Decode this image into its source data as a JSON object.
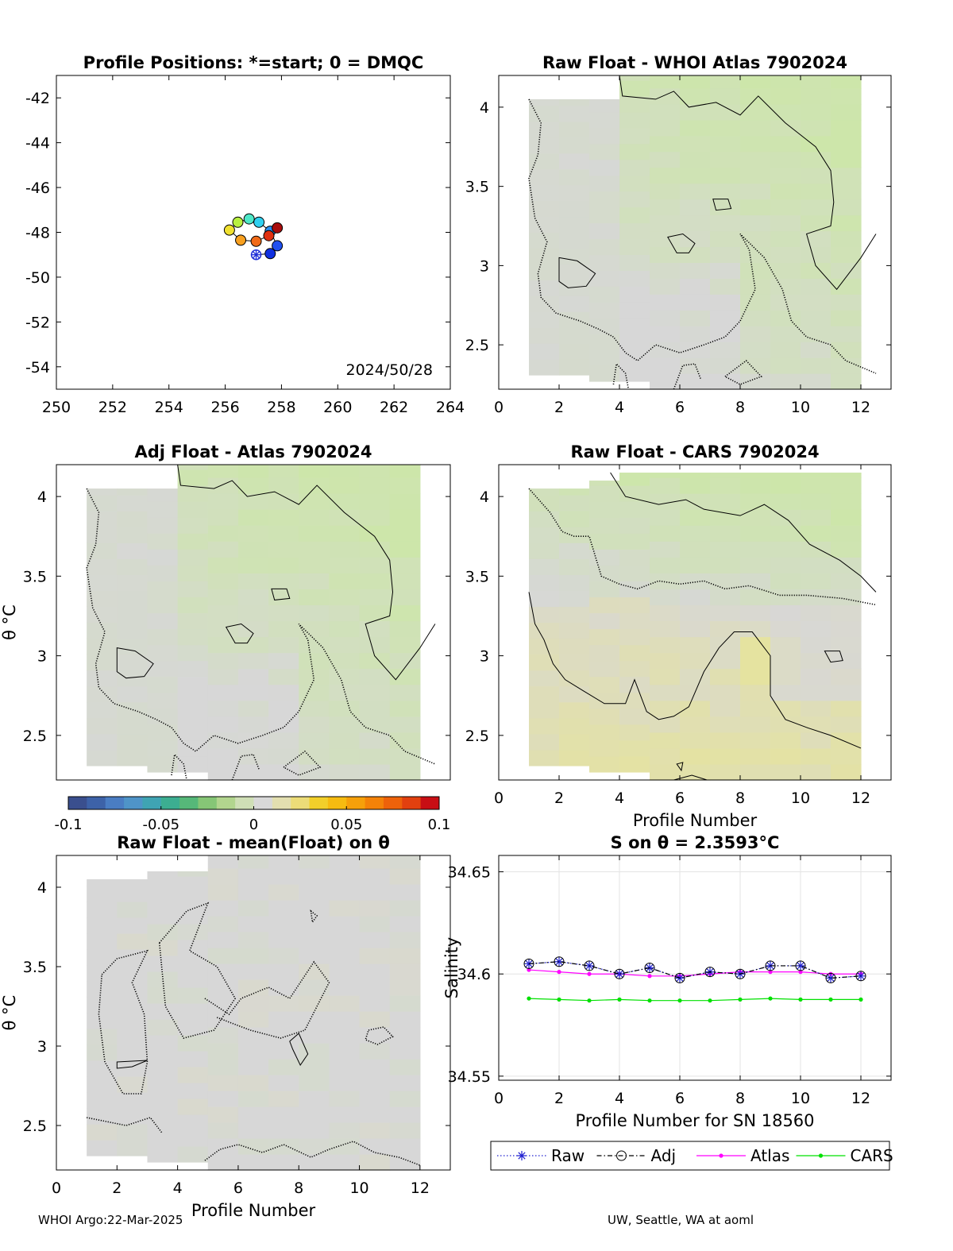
{
  "colors": {
    "neutral": "#d7d7d7",
    "green": "#cde6aa",
    "yellow": "#e6e49a",
    "raw": "#2020d0",
    "adj": "#000000",
    "atlas": "#ff00ff",
    "cars": "#00e000",
    "colorbar": [
      "#3a4f8e",
      "#3d62a8",
      "#4a7dc3",
      "#4f94c8",
      "#3fa4b3",
      "#3cae91",
      "#56b879",
      "#86c676",
      "#b2d58e",
      "#cfdfb6",
      "#d9d9d9",
      "#e3dfb0",
      "#ecdc78",
      "#f2cf2a",
      "#f6bb10",
      "#f6a00a",
      "#f48208",
      "#ee620a",
      "#e2400f",
      "#c80e14"
    ]
  },
  "chart_data": [
    {
      "id": "positions",
      "type": "scatter",
      "title": "Profile Positions: *=start; 0 = DMQC",
      "xlim": [
        250,
        264
      ],
      "ylim": [
        -55,
        -41
      ],
      "xticks": [
        250,
        252,
        254,
        256,
        258,
        260,
        262,
        264
      ],
      "yticks": [
        -42,
        -44,
        -46,
        -48,
        -50,
        -52,
        -54
      ],
      "xticklabels": [
        "250",
        "252",
        "254",
        "256",
        "258",
        "260",
        "262",
        "264"
      ],
      "yticklabels": [
        "-42",
        "-44",
        "-46",
        "-48",
        "-50",
        "-52",
        "-54"
      ],
      "annotation": "2024/50/28",
      "points": [
        {
          "profile": 1,
          "lon": 257.1,
          "lat": -49.0,
          "color": "#1f2fd8",
          "start": true
        },
        {
          "profile": 2,
          "lon": 257.6,
          "lat": -48.95,
          "color": "#1030e0",
          "start": false
        },
        {
          "profile": 3,
          "lon": 257.85,
          "lat": -48.6,
          "color": "#2050f0",
          "start": false
        },
        {
          "profile": 4,
          "lon": 257.6,
          "lat": -47.95,
          "color": "#2b8cf0",
          "start": false
        },
        {
          "profile": 5,
          "lon": 257.2,
          "lat": -47.55,
          "color": "#30d0f0",
          "start": false
        },
        {
          "profile": 6,
          "lon": 256.85,
          "lat": -47.4,
          "color": "#4ee8c8",
          "start": false
        },
        {
          "profile": 7,
          "lon": 256.45,
          "lat": -47.55,
          "color": "#b8f040",
          "start": false
        },
        {
          "profile": 8,
          "lon": 256.15,
          "lat": -47.9,
          "color": "#f0e030",
          "start": false
        },
        {
          "profile": 9,
          "lon": 256.55,
          "lat": -48.35,
          "color": "#f8a020",
          "start": false
        },
        {
          "profile": 10,
          "lon": 257.1,
          "lat": -48.4,
          "color": "#f06a18",
          "start": false
        },
        {
          "profile": 11,
          "lon": 257.55,
          "lat": -48.15,
          "color": "#e03010",
          "start": false
        },
        {
          "profile": 12,
          "lon": 257.85,
          "lat": -47.8,
          "color": "#a80d0d",
          "start": false
        }
      ]
    },
    {
      "id": "raw-whoi",
      "type": "heatmap",
      "title": "Raw Float - WHOI Atlas  7902024",
      "xlim": [
        0,
        13
      ],
      "ylim": [
        2.22,
        4.2
      ],
      "xticks": [
        0,
        2,
        4,
        6,
        8,
        10,
        12
      ],
      "yticks": [
        2.5,
        3,
        3.5,
        4
      ],
      "xticklabels": [
        "0",
        "2",
        "4",
        "6",
        "8",
        "10",
        "12"
      ],
      "yticklabels": [
        "2.5",
        "3",
        "3.5",
        "4"
      ],
      "xlabel": "",
      "ylabel": "",
      "columns": [
        {
          "x0": 1,
          "x1": 2,
          "ytop": 4.05,
          "ybot": 2.31,
          "field": "neutral"
        },
        {
          "x0": 2,
          "x1": 3,
          "ytop": 4.05,
          "ybot": 2.31,
          "field": "neutral"
        },
        {
          "x0": 3,
          "x1": 4,
          "ytop": 4.05,
          "ybot": 2.27,
          "field": "neutral"
        },
        {
          "x0": 4,
          "x1": 5,
          "ytop": 4.2,
          "ybot": 2.27,
          "field": "whoi"
        },
        {
          "x0": 5,
          "x1": 6,
          "ytop": 4.2,
          "ybot": 2.22,
          "field": "whoi"
        },
        {
          "x0": 6,
          "x1": 7,
          "ytop": 4.2,
          "ybot": 2.22,
          "field": "whoi"
        },
        {
          "x0": 7,
          "x1": 8,
          "ytop": 4.2,
          "ybot": 2.22,
          "field": "whoi"
        },
        {
          "x0": 8,
          "x1": 9,
          "ytop": 4.2,
          "ybot": 2.22,
          "field": "whoi"
        },
        {
          "x0": 9,
          "x1": 10,
          "ytop": 4.2,
          "ybot": 2.22,
          "field": "whoi"
        },
        {
          "x0": 10,
          "x1": 11,
          "ytop": 4.2,
          "ybot": 2.22,
          "field": "whoi"
        },
        {
          "x0": 11,
          "x1": 12,
          "ytop": 4.2,
          "ybot": 2.22,
          "field": "whoi"
        }
      ]
    },
    {
      "id": "adj-atlas",
      "type": "heatmap",
      "title": "Adj Float - Atlas  7902024",
      "xlim": [
        0,
        13
      ],
      "ylim": [
        2.22,
        4.2
      ],
      "xticks": [],
      "yticks": [
        2.5,
        3,
        3.5,
        4
      ],
      "xticklabels": [],
      "yticklabels": [
        "2.5",
        "3",
        "3.5",
        "4"
      ],
      "xlabel": "",
      "ylabel": "θ °C",
      "columns": [
        {
          "x0": 1,
          "x1": 2,
          "ytop": 4.05,
          "ybot": 2.31,
          "field": "neutral"
        },
        {
          "x0": 2,
          "x1": 3,
          "ytop": 4.05,
          "ybot": 2.31,
          "field": "neutral"
        },
        {
          "x0": 3,
          "x1": 4,
          "ytop": 4.05,
          "ybot": 2.27,
          "field": "neutral"
        },
        {
          "x0": 4,
          "x1": 5,
          "ytop": 4.2,
          "ybot": 2.27,
          "field": "whoi"
        },
        {
          "x0": 5,
          "x1": 6,
          "ytop": 4.2,
          "ybot": 2.22,
          "field": "whoi"
        },
        {
          "x0": 6,
          "x1": 7,
          "ytop": 4.2,
          "ybot": 2.22,
          "field": "whoi"
        },
        {
          "x0": 7,
          "x1": 8,
          "ytop": 4.2,
          "ybot": 2.22,
          "field": "whoi"
        },
        {
          "x0": 8,
          "x1": 9,
          "ytop": 4.2,
          "ybot": 2.22,
          "field": "whoi"
        },
        {
          "x0": 9,
          "x1": 10,
          "ytop": 4.2,
          "ybot": 2.22,
          "field": "whoi"
        },
        {
          "x0": 10,
          "x1": 11,
          "ytop": 4.2,
          "ybot": 2.22,
          "field": "whoi"
        },
        {
          "x0": 11,
          "x1": 12,
          "ytop": 4.2,
          "ybot": 2.22,
          "field": "whoi"
        }
      ]
    },
    {
      "id": "raw-cars",
      "type": "heatmap",
      "title": "Raw Float - CARS  7902024",
      "xlim": [
        0,
        13
      ],
      "ylim": [
        2.22,
        4.2
      ],
      "xticks": [
        0,
        2,
        4,
        6,
        8,
        10,
        12
      ],
      "yticks": [
        2.5,
        3,
        3.5,
        4
      ],
      "xticklabels": [
        "0",
        "2",
        "4",
        "6",
        "8",
        "10",
        "12"
      ],
      "yticklabels": [
        "2.5",
        "3",
        "3.5",
        "4"
      ],
      "xlabel": "Profile Number",
      "ylabel": "",
      "columns": [
        {
          "x0": 1,
          "x1": 2,
          "ytop": 4.05,
          "ybot": 2.31,
          "field": "cars"
        },
        {
          "x0": 2,
          "x1": 3,
          "ytop": 4.05,
          "ybot": 2.31,
          "field": "cars"
        },
        {
          "x0": 3,
          "x1": 4,
          "ytop": 4.1,
          "ybot": 2.27,
          "field": "cars"
        },
        {
          "x0": 4,
          "x1": 5,
          "ytop": 4.15,
          "ybot": 2.27,
          "field": "cars"
        },
        {
          "x0": 5,
          "x1": 6,
          "ytop": 4.15,
          "ybot": 2.22,
          "field": "cars"
        },
        {
          "x0": 6,
          "x1": 7,
          "ytop": 4.15,
          "ybot": 2.22,
          "field": "cars"
        },
        {
          "x0": 7,
          "x1": 8,
          "ytop": 4.15,
          "ybot": 2.22,
          "field": "cars"
        },
        {
          "x0": 8,
          "x1": 9,
          "ytop": 4.15,
          "ybot": 2.22,
          "field": "cars"
        },
        {
          "x0": 9,
          "x1": 10,
          "ytop": 4.15,
          "ybot": 2.22,
          "field": "cars"
        },
        {
          "x0": 10,
          "x1": 11,
          "ytop": 4.15,
          "ybot": 2.22,
          "field": "cars"
        },
        {
          "x0": 11,
          "x1": 12,
          "ytop": 4.15,
          "ybot": 2.22,
          "field": "cars"
        }
      ]
    },
    {
      "id": "raw-mean",
      "type": "heatmap",
      "title": "Raw Float - mean(Float) on θ",
      "xlim": [
        0,
        13
      ],
      "ylim": [
        2.22,
        4.2
      ],
      "xticks": [
        0,
        2,
        4,
        6,
        8,
        10,
        12
      ],
      "yticks": [
        2.5,
        3,
        3.5,
        4
      ],
      "xticklabels": [
        "0",
        "2",
        "4",
        "6",
        "8",
        "10",
        "12"
      ],
      "yticklabels": [
        "2.5",
        "3",
        "3.5",
        "4"
      ],
      "xlabel": "Profile Number",
      "ylabel": "θ °C",
      "columns": [
        {
          "x0": 1,
          "x1": 2,
          "ytop": 4.05,
          "ybot": 2.31,
          "field": "mean"
        },
        {
          "x0": 2,
          "x1": 3,
          "ytop": 4.05,
          "ybot": 2.31,
          "field": "mean"
        },
        {
          "x0": 3,
          "x1": 4,
          "ytop": 4.1,
          "ybot": 2.27,
          "field": "mean"
        },
        {
          "x0": 4,
          "x1": 5,
          "ytop": 4.1,
          "ybot": 2.27,
          "field": "mean"
        },
        {
          "x0": 5,
          "x1": 6,
          "ytop": 4.2,
          "ybot": 2.22,
          "field": "mean"
        },
        {
          "x0": 6,
          "x1": 7,
          "ytop": 4.2,
          "ybot": 2.22,
          "field": "mean"
        },
        {
          "x0": 7,
          "x1": 8,
          "ytop": 4.2,
          "ybot": 2.22,
          "field": "mean"
        },
        {
          "x0": 8,
          "x1": 9,
          "ytop": 4.2,
          "ybot": 2.22,
          "field": "mean"
        },
        {
          "x0": 9,
          "x1": 10,
          "ytop": 4.2,
          "ybot": 2.22,
          "field": "mean"
        },
        {
          "x0": 10,
          "x1": 11,
          "ytop": 4.2,
          "ybot": 2.22,
          "field": "mean"
        },
        {
          "x0": 11,
          "x1": 12,
          "ytop": 4.2,
          "ybot": 2.22,
          "field": "mean"
        }
      ]
    },
    {
      "id": "salinity",
      "type": "line",
      "title": "S on θ = 2.3593°C",
      "xlim": [
        0,
        13
      ],
      "ylim": [
        34.548,
        34.658
      ],
      "xticks": [
        0,
        2,
        4,
        6,
        8,
        10,
        12
      ],
      "yticks": [
        34.55,
        34.6,
        34.65
      ],
      "xticklabels": [
        "0",
        "2",
        "4",
        "6",
        "8",
        "10",
        "12"
      ],
      "yticklabels": [
        "34.55",
        "34.6",
        "34.65"
      ],
      "xlabel": "Profile Number for SN 18560",
      "ylabel": "Salinity",
      "x": [
        1,
        2,
        3,
        4,
        5,
        6,
        7,
        8,
        9,
        10,
        11,
        12
      ],
      "series": [
        {
          "name": "Raw",
          "values": [
            34.605,
            34.606,
            34.604,
            34.6,
            34.603,
            34.598,
            34.601,
            34.6,
            34.604,
            34.604,
            34.598,
            34.599
          ]
        },
        {
          "name": "Adj",
          "values": [
            34.605,
            34.606,
            34.604,
            34.6,
            34.603,
            34.598,
            34.601,
            34.6,
            34.604,
            34.604,
            34.598,
            34.599
          ]
        },
        {
          "name": "Atlas",
          "values": [
            34.602,
            34.601,
            34.6,
            34.6,
            34.599,
            34.599,
            34.6,
            34.601,
            34.601,
            34.601,
            34.6,
            34.6
          ]
        },
        {
          "name": "CARS",
          "values": [
            34.588,
            34.5875,
            34.587,
            34.5875,
            34.587,
            34.587,
            34.587,
            34.5875,
            34.588,
            34.5875,
            34.5875,
            34.5875
          ]
        }
      ],
      "legend": [
        "Raw",
        "Adj",
        "Atlas",
        "CARS"
      ],
      "legend_position": "bottom"
    }
  ],
  "colorbar": {
    "min": -0.1,
    "max": 0.1,
    "ticks": [
      -0.1,
      -0.05,
      0,
      0.05,
      0.1
    ],
    "ticklabels": [
      "-0.1",
      "-0.05",
      "0",
      "0.05",
      "0.1"
    ]
  },
  "footer": {
    "left": "WHOI Argo:22-Mar-2025",
    "right": "UW, Seattle, WA at aoml"
  }
}
